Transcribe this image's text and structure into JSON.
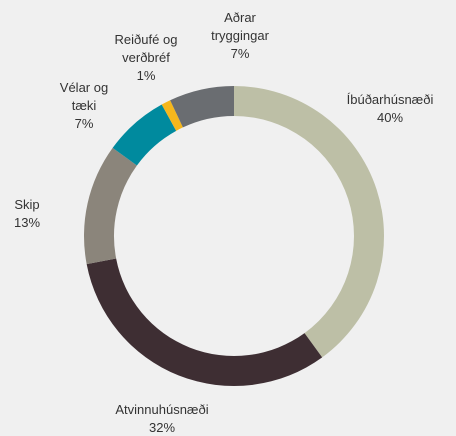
{
  "chart_data": {
    "type": "donut",
    "categories": [
      "Íbúðarhúsnæði",
      "Atvinnuhúsnæði",
      "Skip",
      "Vélar og tæki",
      "Reiðufé og verðbréf",
      "Aðrar tryggingar"
    ],
    "values": [
      40,
      32,
      13,
      7,
      1,
      7
    ],
    "value_labels": [
      "40%",
      "32%",
      "13%",
      "7%",
      "1%",
      "7%"
    ],
    "colors": [
      "#bdbfa6",
      "#3e2e33",
      "#8b857b",
      "#008a9e",
      "#f5b71c",
      "#6a6d71"
    ]
  }
}
